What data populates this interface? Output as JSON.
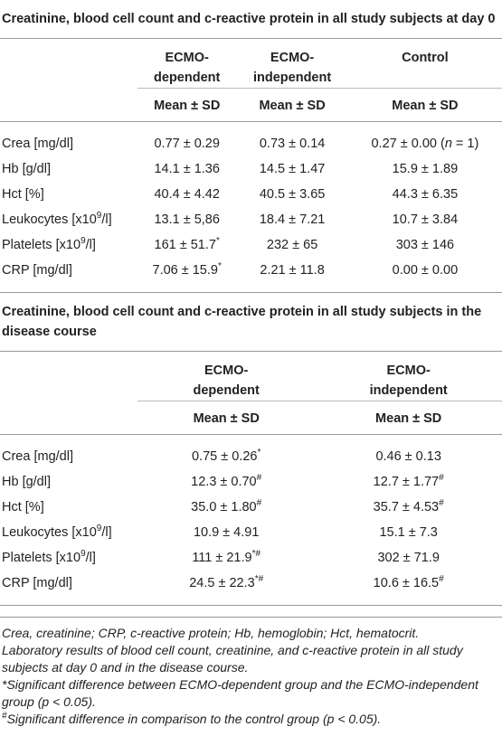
{
  "table1": {
    "title": "Creatinine, blood cell count and c-reactive protein in all study subjects at day 0",
    "headers": [
      "ECMO-\ndependent",
      "ECMO-\nindependent",
      "Control"
    ],
    "subheaders": [
      "Mean ± SD",
      "Mean ± SD",
      "Mean ± SD"
    ],
    "rows": [
      [
        "Crea [mg/dl]",
        "0.77 ± 0.29",
        "0.73 ± 0.14",
        {
          "text": "0.27 ± 0.00 (",
          "em": "n",
          "tail": " = 1)"
        }
      ],
      [
        "Hb [g/dl]",
        "14.1 ± 1.36",
        "14.5 ± 1.47",
        "15.9 ± 1.89"
      ],
      [
        "Hct [%]",
        "40.4 ± 4.42",
        "40.5 ± 3.65",
        "44.3 ± 6.35"
      ],
      [
        {
          "text": "Leukocytes [x10",
          "sup": "9",
          "tail": "/l]"
        },
        "13.1 ± 5,86",
        "18.4 ± 7.21",
        "10.7 ± 3.84"
      ],
      [
        {
          "text": "Platelets [x10",
          "sup": "9",
          "tail": "/l]"
        },
        {
          "text": "161 ± 51.7",
          "sup": "*"
        },
        "232 ± 65",
        "303 ± 146"
      ],
      [
        "CRP [mg/dl]",
        {
          "text": "7.06 ± 15.9",
          "sup": "*"
        },
        "2.21 ± 11.8",
        "0.00 ± 0.00"
      ]
    ]
  },
  "table2": {
    "title": "Creatinine, blood cell count and c-reactive protein in all study subjects in the disease course",
    "headers": [
      "ECMO-\ndependent",
      "ECMO-\nindependent"
    ],
    "subheaders": [
      "Mean ± SD",
      "Mean ± SD"
    ],
    "rows": [
      [
        "Crea [mg/dl]",
        {
          "text": "0.75 ± 0.26",
          "sup": "*"
        },
        "0.46 ± 0.13"
      ],
      [
        "Hb [g/dl]",
        {
          "text": "12.3 ± 0.70",
          "sup": "#"
        },
        {
          "text": "12.7 ± 1.77",
          "sup": "#"
        }
      ],
      [
        "Hct [%]",
        {
          "text": "35.0 ± 1.80",
          "sup": "#"
        },
        {
          "text": "35.7 ± 4.53",
          "sup": "#"
        }
      ],
      [
        {
          "text": "Leukocytes [x10",
          "sup": "9",
          "tail": "/l]"
        },
        "10.9 ± 4.91",
        "15.1 ± 7.3"
      ],
      [
        {
          "text": "Platelets [x10",
          "sup": "9",
          "tail": "/l]"
        },
        {
          "text": "111 ± 21.9",
          "sup": "*#"
        },
        "302 ± 71.9"
      ],
      [
        "CRP [mg/dl]",
        {
          "text": "24.5 ± 22.3",
          "sup": "*#"
        },
        {
          "text": "10.6 ± 16.5",
          "sup": "#"
        }
      ]
    ]
  },
  "notes": [
    "Crea, creatinine; CRP, c-reactive protein; Hb, hemoglobin; Hct, hematocrit.",
    "Laboratory results of blood cell count, creatinine, and c-reactive protein in all study subjects at day 0 and in the disease course.",
    "*Significant difference between ECMO-dependent group and the ECMO-independent group (p < 0.05).",
    {
      "sup": "#",
      "tail": "Significant difference in comparison to the control group (p < 0.05)."
    }
  ]
}
